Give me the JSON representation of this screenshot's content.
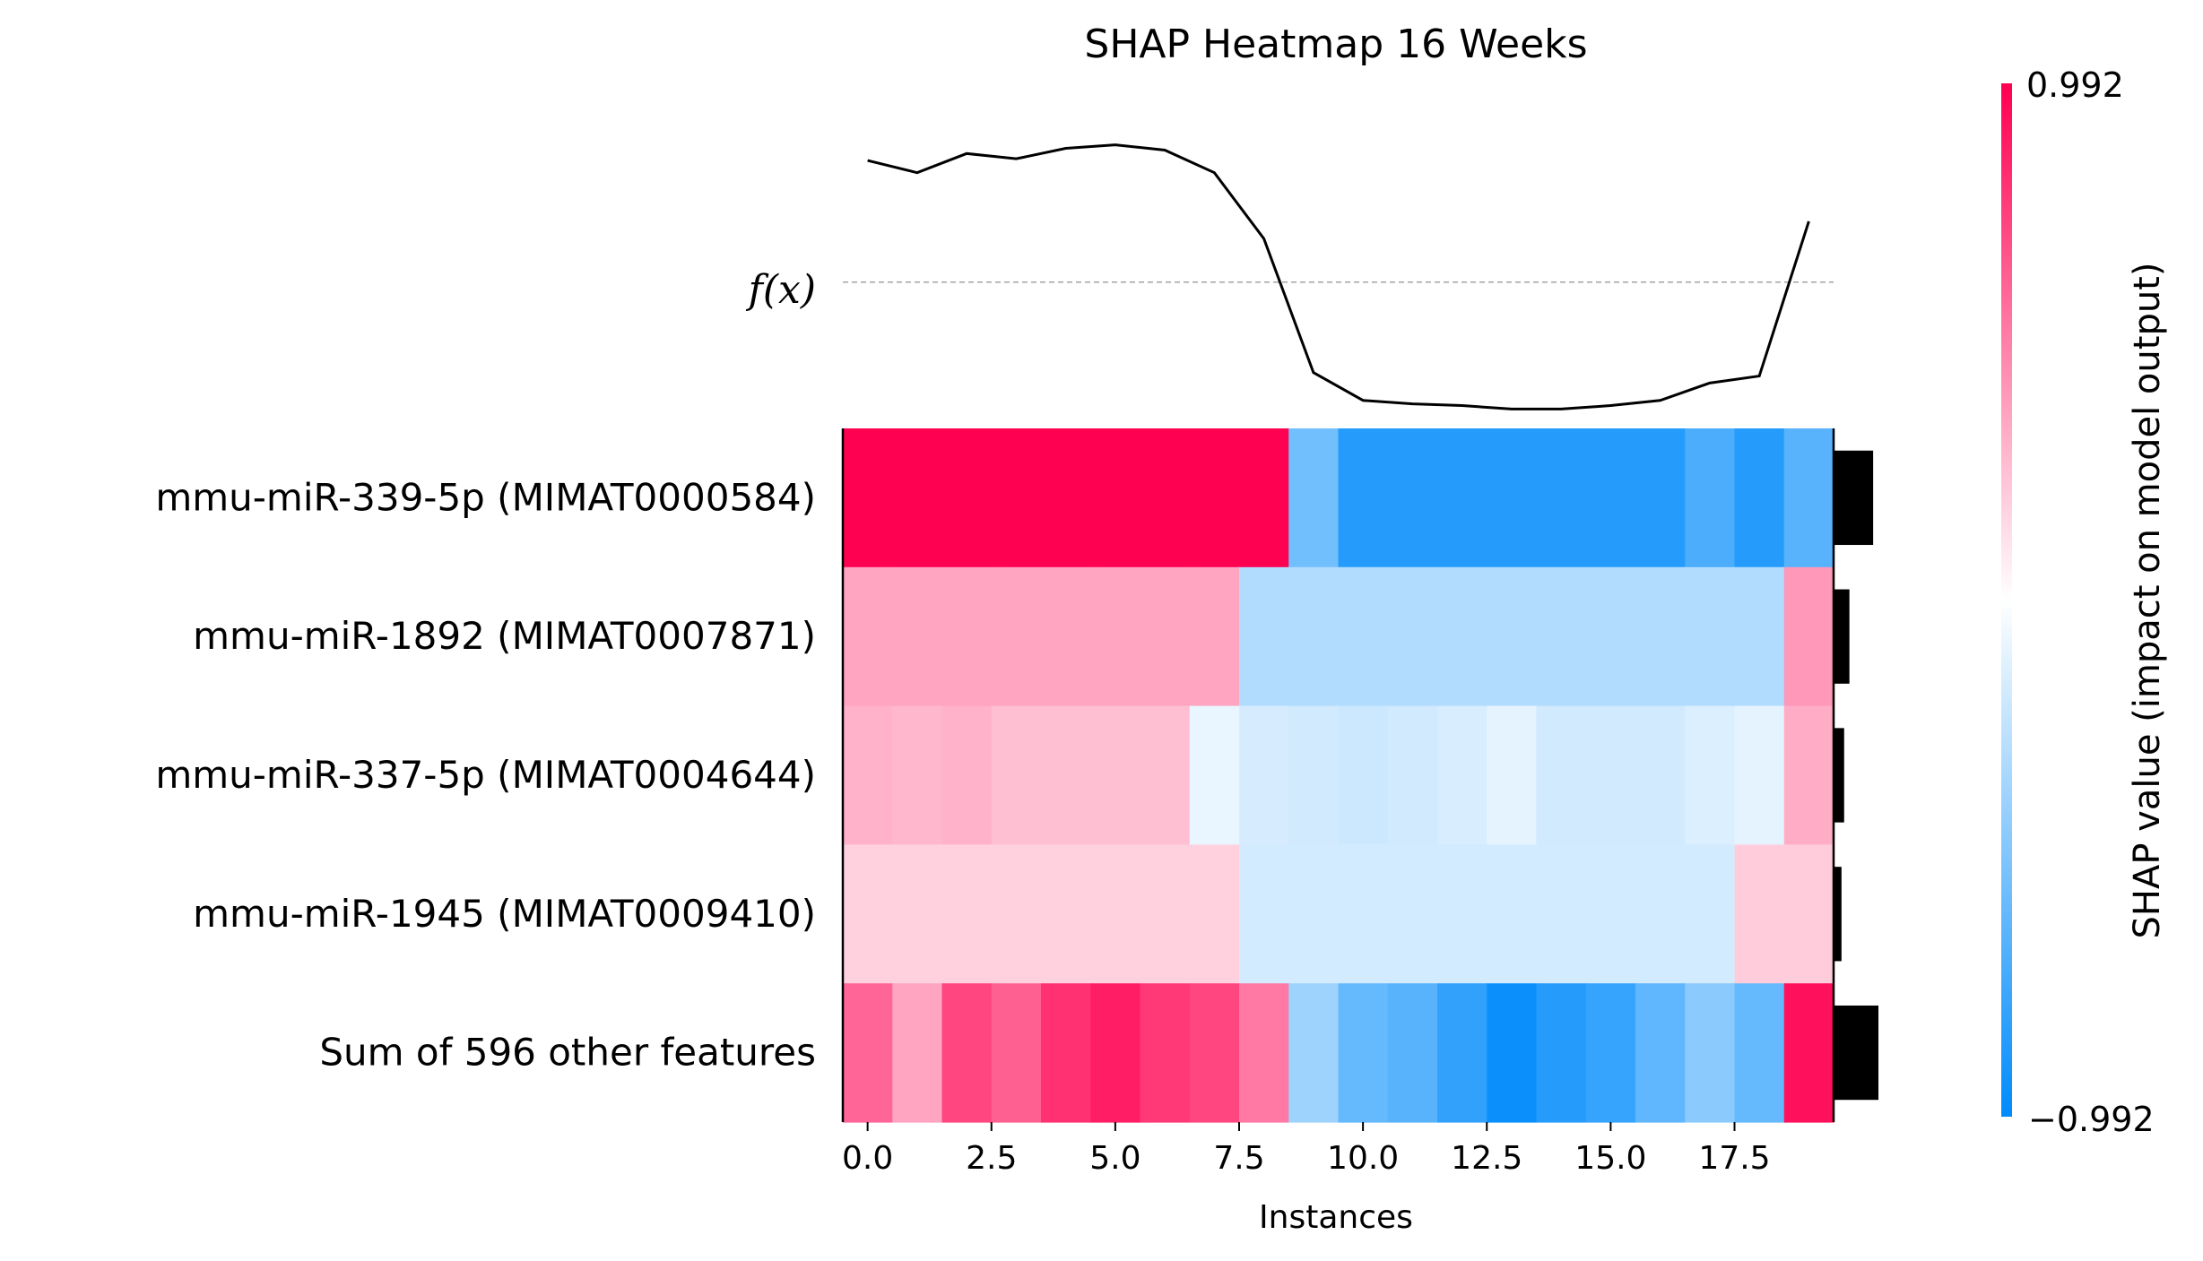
{
  "chart_data": {
    "type": "heatmap",
    "title": "SHAP Heatmap 16 Weeks",
    "xlabel": "Instances",
    "xlim": [
      -0.5,
      19.5
    ],
    "xticks": [
      0.0,
      2.5,
      5.0,
      7.5,
      10.0,
      12.5,
      15.0,
      17.5
    ],
    "xtick_labels": [
      "0.0",
      "2.5",
      "5.0",
      "7.5",
      "10.0",
      "12.5",
      "15.0",
      "17.5"
    ],
    "fx_label": "f(x)",
    "fx_values": [
      0.7,
      0.63,
      0.74,
      0.71,
      0.77,
      0.79,
      0.76,
      0.63,
      0.25,
      -0.52,
      -0.68,
      -0.7,
      -0.71,
      -0.73,
      -0.73,
      -0.71,
      -0.68,
      -0.58,
      -0.54,
      0.35
    ],
    "fx_ylim": [
      -0.8,
      0.85
    ],
    "fx_baseline": 0.0,
    "features": [
      "mmu-miR-339-5p (MIMAT0000584)",
      "mmu-miR-1892 (MIMAT0007871)",
      "mmu-miR-337-5p (MIMAT0004644)",
      "mmu-miR-1945 (MIMAT0009410)",
      "Sum of 596 other features"
    ],
    "shap_values": [
      [
        0.99,
        0.99,
        0.99,
        0.99,
        0.99,
        0.99,
        0.99,
        0.99,
        0.99,
        -0.55,
        -0.85,
        -0.85,
        -0.85,
        -0.85,
        -0.85,
        -0.85,
        -0.85,
        -0.7,
        -0.85,
        -0.65
      ],
      [
        0.35,
        0.35,
        0.35,
        0.35,
        0.35,
        0.35,
        0.35,
        0.35,
        -0.3,
        -0.3,
        -0.3,
        -0.3,
        -0.3,
        -0.3,
        -0.3,
        -0.3,
        -0.3,
        -0.3,
        -0.3,
        0.4
      ],
      [
        0.3,
        0.28,
        0.3,
        0.25,
        0.25,
        0.25,
        0.25,
        -0.08,
        -0.16,
        -0.18,
        -0.2,
        -0.18,
        -0.15,
        -0.1,
        -0.18,
        -0.18,
        -0.18,
        -0.14,
        -0.1,
        0.32
      ],
      [
        0.18,
        0.18,
        0.18,
        0.18,
        0.18,
        0.18,
        0.18,
        0.18,
        -0.17,
        -0.17,
        -0.17,
        -0.17,
        -0.17,
        -0.17,
        -0.17,
        -0.17,
        -0.17,
        -0.17,
        0.2,
        0.2
      ],
      [
        0.6,
        0.35,
        0.72,
        0.62,
        0.8,
        0.88,
        0.77,
        0.72,
        0.52,
        -0.38,
        -0.6,
        -0.65,
        -0.8,
        -0.95,
        -0.85,
        -0.78,
        -0.62,
        -0.45,
        -0.6,
        0.93
      ]
    ],
    "feature_importance": [
      0.3,
      0.12,
      0.08,
      0.06,
      0.34
    ],
    "colorbar": {
      "label": "SHAP value (impact on model output)",
      "min": -0.992,
      "max": 0.992,
      "min_label": "−0.992",
      "max_label": "0.992",
      "low_color": "#008bfb",
      "mid_color": "#ffffff",
      "high_color": "#ff0051"
    }
  }
}
